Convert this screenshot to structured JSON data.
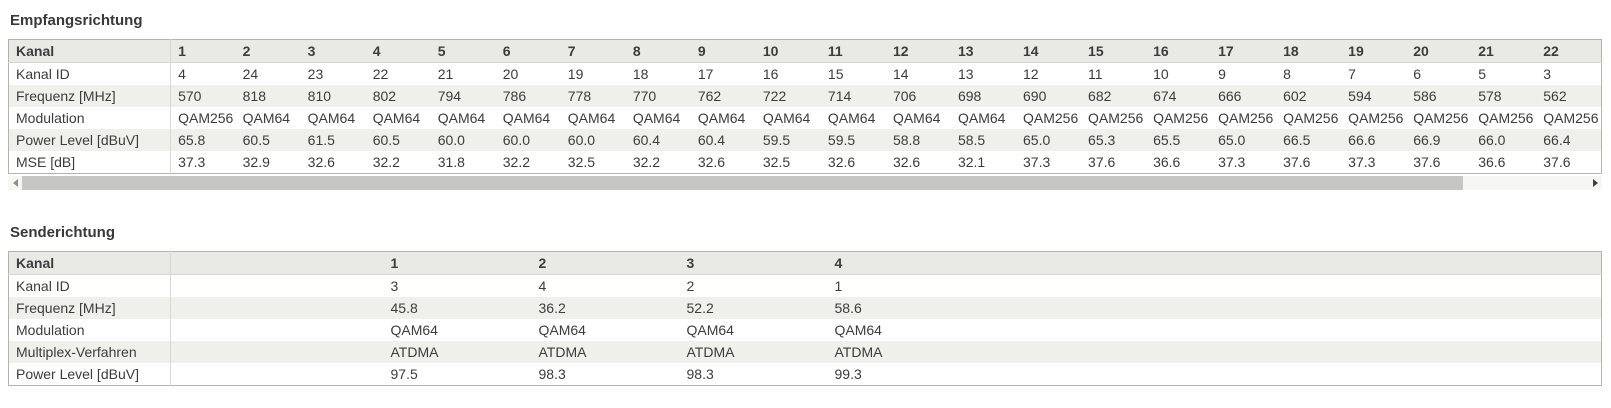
{
  "sections": [
    {
      "title": "Empfangsrichtung",
      "table": {
        "corner_label": "Kanal",
        "columns": [
          "1",
          "2",
          "3",
          "4",
          "5",
          "6",
          "7",
          "8",
          "9",
          "10",
          "11",
          "12",
          "13",
          "14",
          "15",
          "16",
          "17",
          "18",
          "19",
          "20",
          "21",
          "22"
        ],
        "rows": [
          {
            "label": "Kanal ID",
            "values": [
              "4",
              "24",
              "23",
              "22",
              "21",
              "20",
              "19",
              "18",
              "17",
              "16",
              "15",
              "14",
              "13",
              "12",
              "11",
              "10",
              "9",
              "8",
              "7",
              "6",
              "5",
              "3"
            ]
          },
          {
            "label": "Frequenz [MHz]",
            "values": [
              "570",
              "818",
              "810",
              "802",
              "794",
              "786",
              "778",
              "770",
              "762",
              "722",
              "714",
              "706",
              "698",
              "690",
              "682",
              "674",
              "666",
              "602",
              "594",
              "586",
              "578",
              "562"
            ]
          },
          {
            "label": "Modulation",
            "values": [
              "QAM256",
              "QAM64",
              "QAM64",
              "QAM64",
              "QAM64",
              "QAM64",
              "QAM64",
              "QAM64",
              "QAM64",
              "QAM64",
              "QAM64",
              "QAM64",
              "QAM64",
              "QAM256",
              "QAM256",
              "QAM256",
              "QAM256",
              "QAM256",
              "QAM256",
              "QAM256",
              "QAM256",
              "QAM256"
            ]
          },
          {
            "label": "Power Level [dBuV]",
            "values": [
              "65.8",
              "60.5",
              "61.5",
              "60.5",
              "60.0",
              "60.0",
              "60.0",
              "60.4",
              "60.4",
              "59.5",
              "59.5",
              "58.8",
              "58.5",
              "65.0",
              "65.3",
              "65.5",
              "65.0",
              "66.5",
              "66.6",
              "66.9",
              "66.0",
              "66.4"
            ]
          },
          {
            "label": "MSE [dB]",
            "values": [
              "37.3",
              "32.9",
              "32.6",
              "32.2",
              "31.8",
              "32.2",
              "32.5",
              "32.2",
              "32.6",
              "32.5",
              "32.6",
              "32.6",
              "32.1",
              "37.3",
              "37.6",
              "36.6",
              "37.3",
              "37.6",
              "37.3",
              "37.6",
              "36.6",
              "37.6"
            ]
          }
        ],
        "scrollbar": {
          "thumb_percent": 92
        }
      }
    },
    {
      "title": "Senderichtung",
      "table": {
        "corner_label": "Kanal",
        "columns": [
          "1",
          "2",
          "3",
          "4"
        ],
        "rows": [
          {
            "label": "Kanal ID",
            "values": [
              "3",
              "4",
              "2",
              "1"
            ]
          },
          {
            "label": "Frequenz [MHz]",
            "values": [
              "45.8",
              "36.2",
              "52.2",
              "58.6"
            ]
          },
          {
            "label": "Modulation",
            "values": [
              "QAM64",
              "QAM64",
              "QAM64",
              "QAM64"
            ]
          },
          {
            "label": "Multiplex-Verfahren",
            "values": [
              "ATDMA",
              "ATDMA",
              "ATDMA",
              "ATDMA"
            ]
          },
          {
            "label": "Power Level [dBuV]",
            "values": [
              "97.5",
              "98.3",
              "98.3",
              "99.3"
            ]
          }
        ]
      }
    }
  ],
  "colors": {
    "header_bg": "#e9e9e6",
    "stripe_bg": "#efefec",
    "table_border": "#b4b4ac",
    "text": "#3c3c3c",
    "scroll_thumb": "#c6c6c4"
  }
}
